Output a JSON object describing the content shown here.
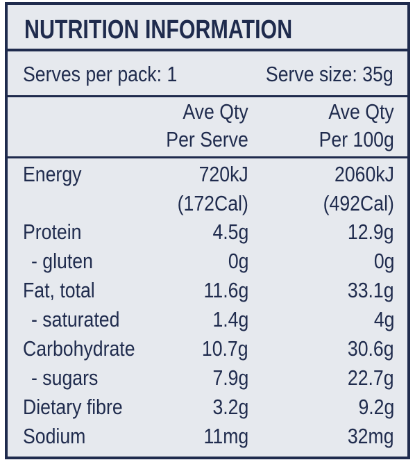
{
  "title": "NUTRITION INFORMATION",
  "serving": {
    "per_pack": "Serves per pack: 1",
    "size": "Serve size: 35g"
  },
  "table": {
    "header": [
      [
        "Ave Qty",
        "Per Serve"
      ],
      [
        "Ave Qty",
        "Per 100g"
      ]
    ],
    "rows": [
      [
        "Energy",
        [
          "720kJ",
          "(172Cal)"
        ],
        [
          "2060kJ",
          "(492Cal)"
        ]
      ],
      [
        "Protein",
        "4.5g",
        "12.9g"
      ],
      [
        "- gluten",
        "0g",
        "0g"
      ],
      [
        "Fat, total",
        "11.6g",
        "33.1g"
      ],
      [
        "- saturated",
        "1.4g",
        "4g"
      ],
      [
        "Carbohydrate",
        "10.7g",
        "30.6g"
      ],
      [
        "- sugars",
        "7.9g",
        "22.7g"
      ],
      [
        "Dietary fibre",
        "3.2g",
        "9.2g"
      ],
      [
        "Sodium",
        "11mg",
        "32mg"
      ]
    ]
  }
}
